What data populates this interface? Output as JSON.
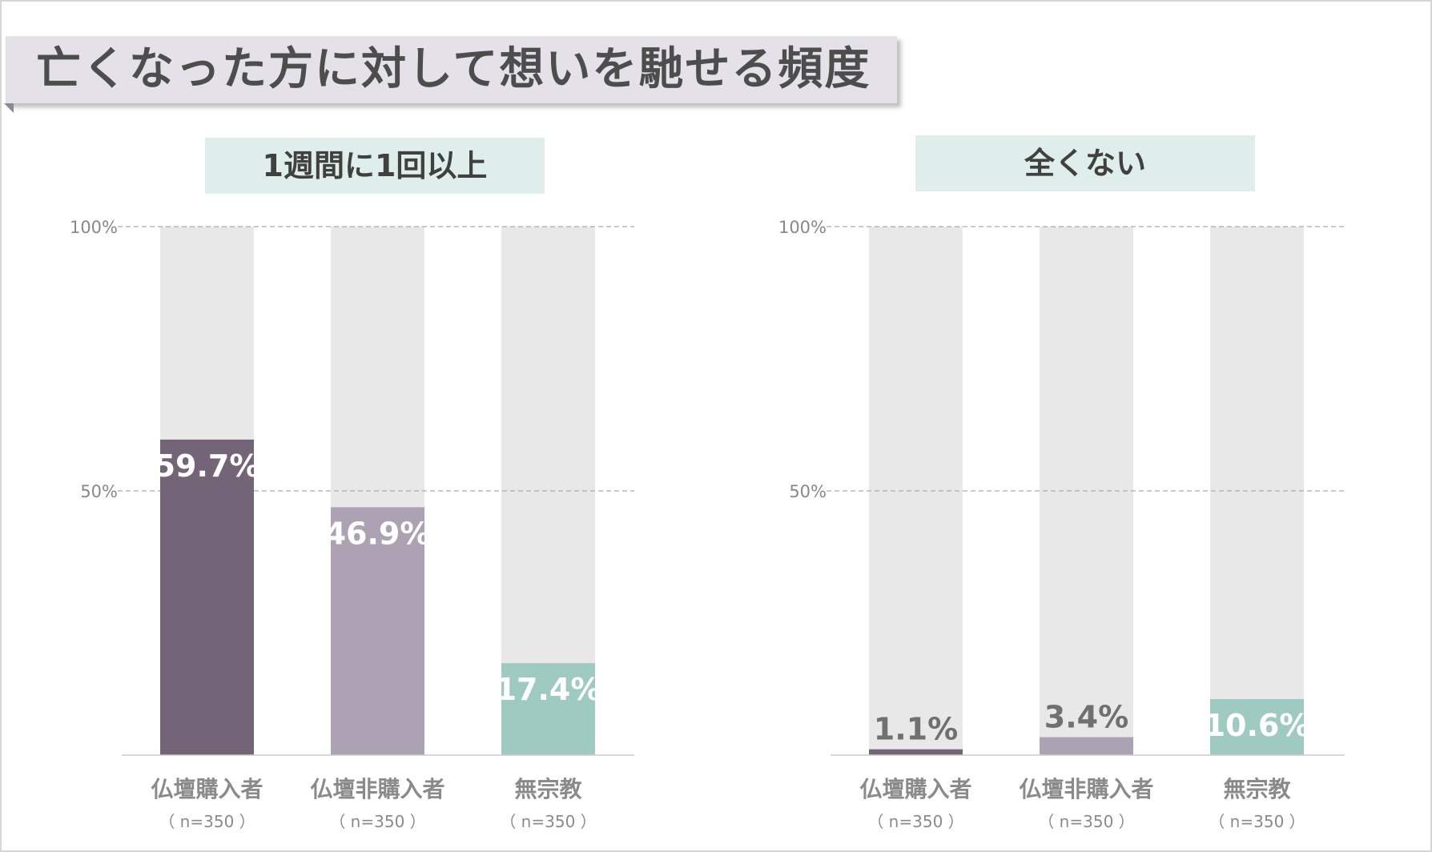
{
  "title": "亡くなった方に対して想いを馳せる頻度",
  "colors": {
    "buyers": "#736478",
    "non_buyers": "#ada2b4",
    "no_religion": "#9fcac1",
    "track": "#e8e8e8",
    "label_bg": "#dfeeeb",
    "grid": "#aaaaaa"
  },
  "chart_data": [
    {
      "type": "bar",
      "title": "1週間に1回以上",
      "categories": [
        "仏壇購入者",
        "仏壇非購入者",
        "無宗教"
      ],
      "sample_labels": [
        "（ n=350 ）",
        "（ n=350 ）",
        "（ n=350 ）"
      ],
      "values": [
        59.7,
        46.9,
        17.4
      ],
      "value_labels": [
        "59.7%",
        "46.9%",
        "17.4%"
      ],
      "ylim": [
        0,
        100
      ],
      "yticks": [
        {
          "value": 100,
          "label": "100%"
        },
        {
          "value": 50,
          "label": "50%"
        }
      ],
      "grid": true
    },
    {
      "type": "bar",
      "title": "全くない",
      "categories": [
        "仏壇購入者",
        "仏壇非購入者",
        "無宗教"
      ],
      "sample_labels": [
        "（ n=350 ）",
        "（ n=350 ）",
        "（ n=350 ）"
      ],
      "values": [
        1.1,
        3.4,
        10.6
      ],
      "value_labels": [
        "1.1%",
        "3.4%",
        "10.6%"
      ],
      "ylim": [
        0,
        100
      ],
      "yticks": [
        {
          "value": 100,
          "label": "100%"
        },
        {
          "value": 50,
          "label": "50%"
        }
      ],
      "grid": true
    }
  ]
}
